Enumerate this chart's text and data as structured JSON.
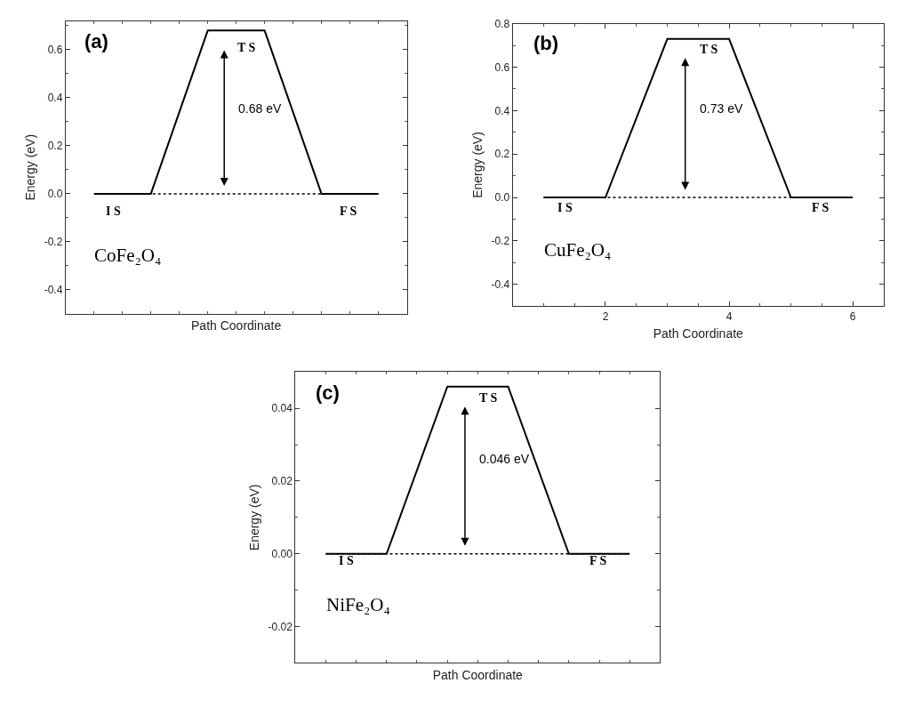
{
  "chart_data": [
    {
      "type": "line",
      "xlabel": "Path Coordinate",
      "ylabel": "Energy (eV)",
      "categories": [
        null,
        null,
        null,
        null,
        null,
        null
      ],
      "ylim": [
        -0.5,
        0.72
      ],
      "yticks": [
        {
          "value": -0.4,
          "label": "-0.4"
        },
        {
          "value": -0.2,
          "label": "-0.2"
        },
        {
          "value": 0,
          "label": "0.0"
        },
        {
          "value": 0.2,
          "label": "0.2"
        },
        {
          "value": 0.4,
          "label": "0.4"
        },
        {
          "value": 0.6,
          "label": "0.6"
        }
      ],
      "tick_labels": "y",
      "series": [
        {
          "color": "#000000",
          "values": [
            0,
            0,
            0.68,
            0.68,
            0,
            0
          ]
        }
      ],
      "ref_lines": [
        {
          "axis": "y",
          "value": 0,
          "color": "#000000",
          "line_style": "dotted"
        }
      ],
      "annotations": [
        "(a)",
        "CoFe₂O₄",
        "T S",
        "I S",
        "F S",
        "0.68 eV"
      ]
    },
    {
      "type": "line",
      "xlabel": "Path Coordinate",
      "ylabel": "Energy (eV)",
      "x": [
        1,
        2,
        3,
        4,
        5,
        6
      ],
      "xlim": [
        0.5,
        6.5
      ],
      "xticks": [
        2,
        4,
        6
      ],
      "ylim": [
        -0.5,
        0.8
      ],
      "yticks": [
        {
          "value": -0.4,
          "label": "-0.4"
        },
        {
          "value": -0.2,
          "label": "-0.2"
        },
        {
          "value": 0,
          "label": "0.0"
        },
        {
          "value": 0.2,
          "label": "0.2"
        },
        {
          "value": 0.4,
          "label": "0.4"
        },
        {
          "value": 0.6,
          "label": "0.6"
        },
        {
          "value": 0.8,
          "label": "0.8"
        }
      ],
      "series": [
        {
          "color": "#000000",
          "values": [
            0,
            0,
            0.73,
            0.73,
            0,
            0
          ]
        }
      ],
      "ref_lines": [
        {
          "axis": "y",
          "value": 0,
          "color": "#000000",
          "line_style": "dotted"
        }
      ],
      "annotations": [
        "(b)",
        "CuFe₂O₄",
        "T S",
        "I S",
        "F S",
        "0.73 eV"
      ]
    },
    {
      "type": "line",
      "xlabel": "Path Coordinate",
      "ylabel": "Energy (eV)",
      "categories": [
        null,
        null,
        null,
        null,
        null,
        null
      ],
      "ylim": [
        -0.03,
        0.05
      ],
      "yticks": [
        {
          "value": -0.02,
          "label": "-0.02"
        },
        {
          "value": 0,
          "label": "0.00"
        },
        {
          "value": 0.02,
          "label": "0.02"
        },
        {
          "value": 0.04,
          "label": "0.04"
        }
      ],
      "tick_labels": "y",
      "series": [
        {
          "color": "#000000",
          "values": [
            0,
            0,
            0.046,
            0.046,
            0,
            0
          ]
        }
      ],
      "ref_lines": [
        {
          "axis": "y",
          "value": 0,
          "color": "#000000",
          "line_style": "dotted"
        }
      ],
      "annotations": [
        "(c)",
        "NiFe₂O₄",
        "T S",
        "I S",
        "F S",
        "0.046 eV"
      ]
    }
  ]
}
